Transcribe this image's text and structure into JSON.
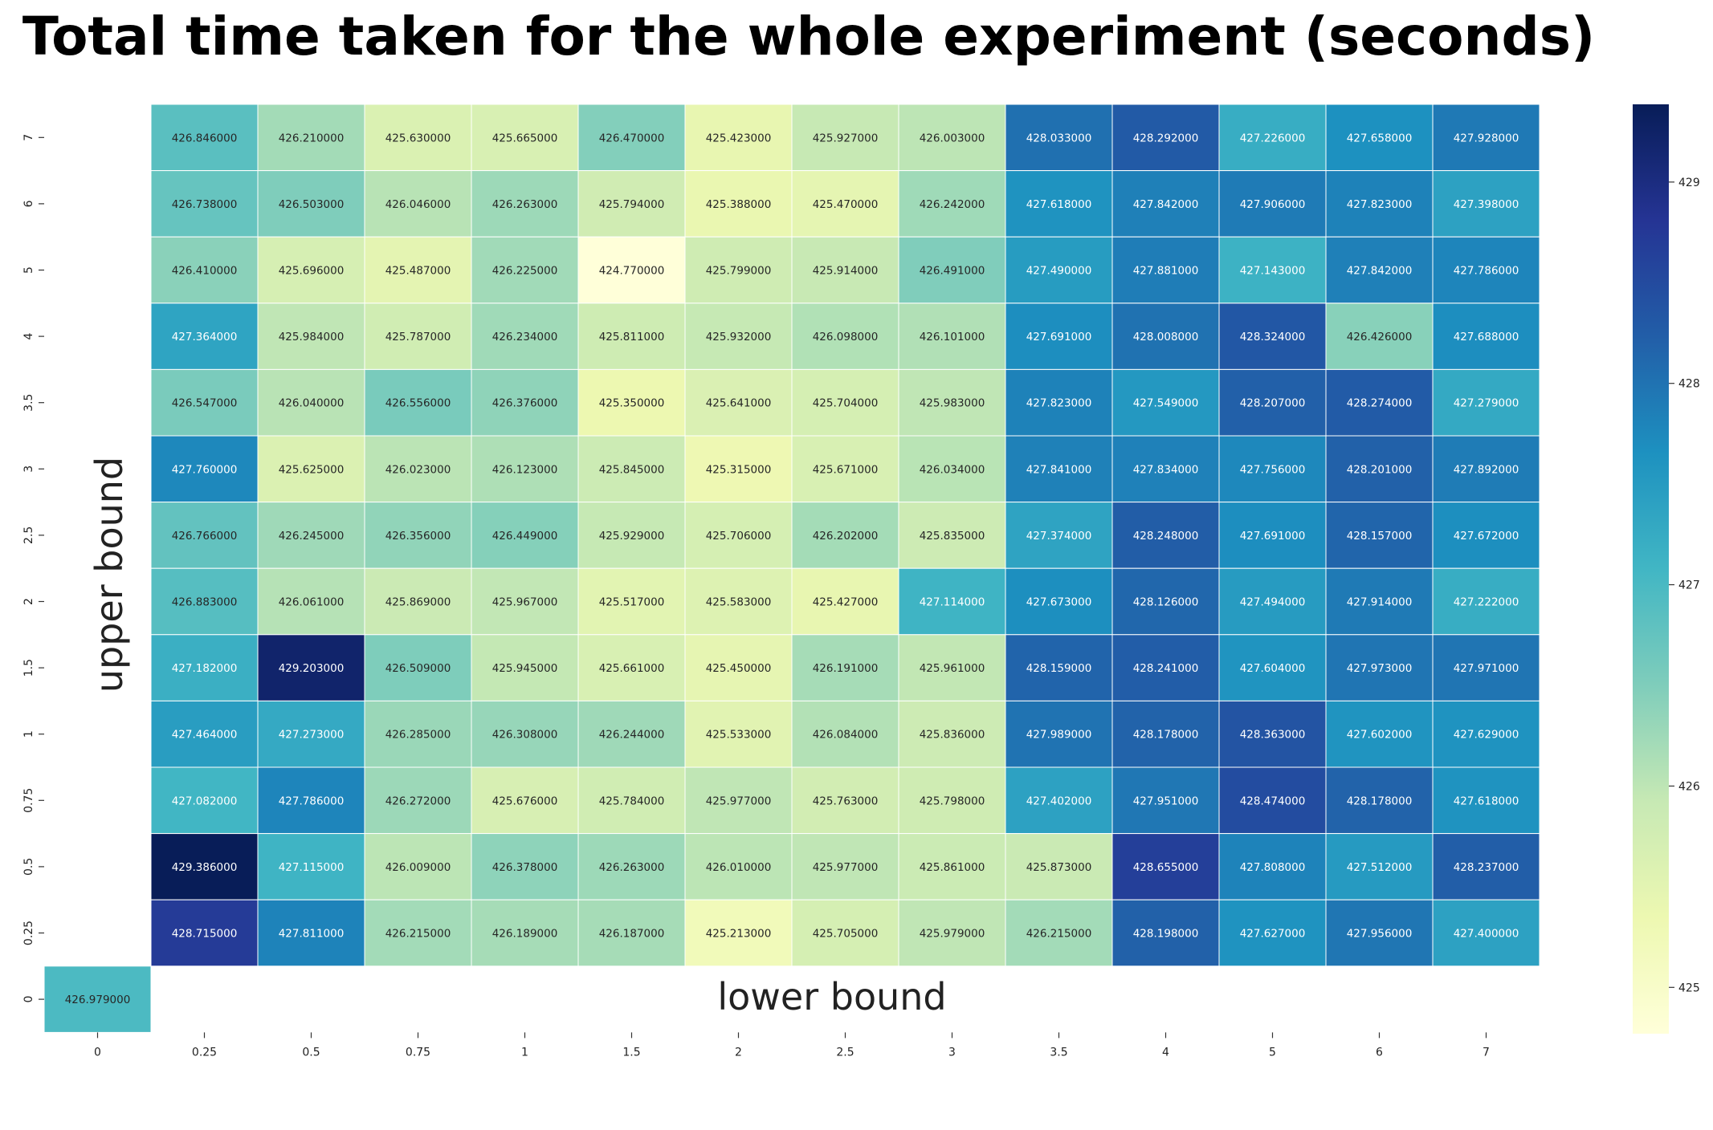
{
  "chart_data": {
    "type": "heatmap",
    "title": "Total time taken for the whole experiment (seconds)",
    "xlabel": "lower bound",
    "ylabel": "upper bound",
    "x_categories": [
      "0",
      "0.25",
      "0.5",
      "0.75",
      "1",
      "1.5",
      "2",
      "2.5",
      "3",
      "3.5",
      "4",
      "5",
      "6",
      "7"
    ],
    "y_categories": [
      "7",
      "6",
      "5",
      "4",
      "3.5",
      "3",
      "2.5",
      "2",
      "1.5",
      "1",
      "0.75",
      "0.5",
      "0.25",
      "0"
    ],
    "values": [
      [
        null,
        426.846,
        426.21,
        425.63,
        425.665,
        426.47,
        425.423,
        425.927,
        426.003,
        428.033,
        428.292,
        427.226,
        427.658,
        427.928
      ],
      [
        null,
        426.738,
        426.503,
        426.046,
        426.263,
        425.794,
        425.388,
        425.47,
        426.242,
        427.618,
        427.842,
        427.906,
        427.823,
        427.398
      ],
      [
        null,
        426.41,
        425.696,
        425.487,
        426.225,
        424.77,
        425.799,
        425.914,
        426.491,
        427.49,
        427.881,
        427.143,
        427.842,
        427.786
      ],
      [
        null,
        427.364,
        425.984,
        425.787,
        426.234,
        425.811,
        425.932,
        426.098,
        426.101,
        427.691,
        428.008,
        428.324,
        426.426,
        427.688
      ],
      [
        null,
        426.547,
        426.04,
        426.556,
        426.376,
        425.35,
        425.641,
        425.704,
        425.983,
        427.823,
        427.549,
        428.207,
        428.274,
        427.279
      ],
      [
        null,
        427.76,
        425.625,
        426.023,
        426.123,
        425.845,
        425.315,
        425.671,
        426.034,
        427.841,
        427.834,
        427.756,
        428.201,
        427.892
      ],
      [
        null,
        426.766,
        426.245,
        426.356,
        426.449,
        425.929,
        425.706,
        426.202,
        425.835,
        427.374,
        428.248,
        427.691,
        428.157,
        427.672
      ],
      [
        null,
        426.883,
        426.061,
        425.869,
        425.967,
        425.517,
        425.583,
        425.427,
        427.114,
        427.673,
        428.126,
        427.494,
        427.914,
        427.222
      ],
      [
        null,
        427.182,
        429.203,
        426.509,
        425.945,
        425.661,
        425.45,
        426.191,
        425.961,
        428.159,
        428.241,
        427.604,
        427.973,
        427.971
      ],
      [
        null,
        427.464,
        427.273,
        426.285,
        426.308,
        426.244,
        425.533,
        426.084,
        425.836,
        427.989,
        428.178,
        428.363,
        427.602,
        427.629
      ],
      [
        null,
        427.082,
        427.786,
        426.272,
        425.676,
        425.784,
        425.977,
        425.763,
        425.798,
        427.402,
        427.951,
        428.474,
        428.178,
        427.618
      ],
      [
        null,
        429.386,
        427.115,
        426.009,
        426.378,
        426.263,
        426.01,
        425.977,
        425.861,
        425.873,
        428.655,
        427.808,
        427.512,
        428.237
      ],
      [
        null,
        428.715,
        427.811,
        426.215,
        426.189,
        426.187,
        425.213,
        425.705,
        425.979,
        426.215,
        428.198,
        427.627,
        427.956,
        427.4
      ],
      [
        426.979,
        null,
        null,
        null,
        null,
        null,
        null,
        null,
        null,
        null,
        null,
        null,
        null,
        null
      ]
    ],
    "value_format": "fixed-6",
    "colormap": "YlGnBu",
    "colorbar": {
      "min": 424.77,
      "max": 429.386,
      "ticks": [
        425,
        426,
        427,
        428,
        429
      ]
    },
    "legend": "colorbar-right",
    "grid": false
  }
}
